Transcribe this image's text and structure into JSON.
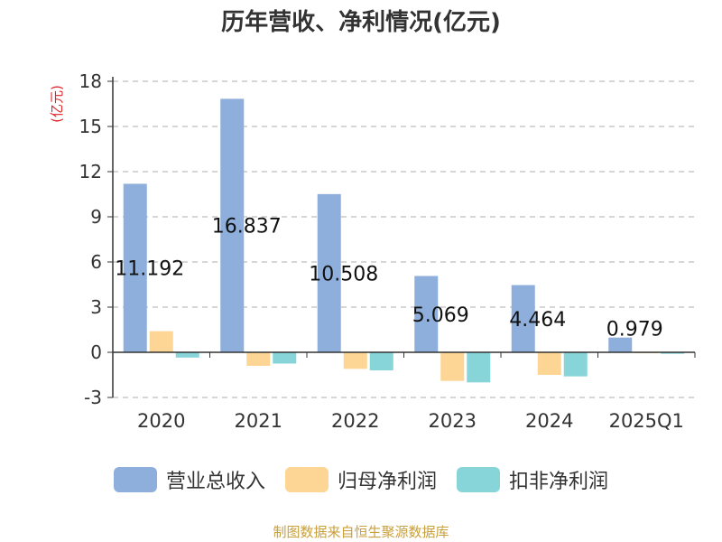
{
  "chart_data": {
    "type": "bar",
    "title": "历年营收、净利情况(亿元)",
    "ylabel": "(亿元)",
    "xlabel": "",
    "categories": [
      "2020",
      "2021",
      "2022",
      "2023",
      "2024",
      "2025Q1"
    ],
    "ylim": [
      -3,
      18
    ],
    "yticks": [
      -3,
      0,
      3,
      6,
      9,
      12,
      15,
      18
    ],
    "grid": true,
    "legend_position": "bottom",
    "series": [
      {
        "name": "营业总收入",
        "color": "#8eaedc",
        "values": [
          11.192,
          16.837,
          10.508,
          5.069,
          4.464,
          0.979
        ],
        "data_labels": [
          "11.192",
          "16.837",
          "10.508",
          "5.069",
          "4.464",
          "0.979"
        ]
      },
      {
        "name": "归母净利润",
        "color": "#fdd595",
        "values": [
          1.4,
          -0.9,
          -1.1,
          -1.9,
          -1.5,
          -0.05
        ]
      },
      {
        "name": "扣非净利润",
        "color": "#87d5d8",
        "values": [
          -0.35,
          -0.75,
          -1.2,
          -2.0,
          -1.6,
          -0.1
        ]
      }
    ]
  },
  "footer": {
    "source": "制图数据来自恒生聚源数据库"
  }
}
